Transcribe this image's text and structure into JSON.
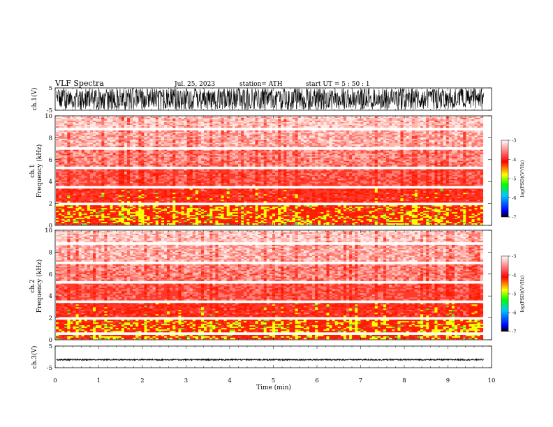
{
  "header": {
    "title": "VLF  Spectra",
    "date": "Jul.  25,  2023",
    "station": "station= ATH",
    "start": "start  UT  =    5  : 50 : 1"
  },
  "chart_data": [
    {
      "type": "line",
      "panel": "ch1-waveform",
      "ylabel": "ch.1(V)",
      "ylim": [
        -5,
        5
      ],
      "ytick_labels": [
        "5",
        "-5"
      ],
      "xlim": [
        0,
        10
      ],
      "amplitude_range": [
        -5,
        5
      ],
      "data_end_min": 9.82
    },
    {
      "type": "heatmap",
      "panel": "ch1-spectrogram",
      "ylabel_line1": "ch.1",
      "ylabel_line2": "Frequency  (kHz)",
      "ylim": [
        0,
        10
      ],
      "ytick_labels": [
        "0",
        "2",
        "4",
        "6",
        "8",
        "10"
      ],
      "xlim": [
        0,
        10
      ],
      "data_end_min": 9.82,
      "white_gaps_khz": [
        1.9,
        3.5,
        5.3,
        7.1,
        8.8
      ],
      "colorbar": {
        "label": "log(PSD)(V²/Hz)",
        "range": [
          -7,
          -3
        ],
        "tick_labels": [
          "-3",
          "-4",
          "-5",
          "-6",
          "-7"
        ],
        "colors": [
          "#000000",
          "#0000ff",
          "#00c8ff",
          "#00ff00",
          "#ffff00",
          "#ff0000",
          "#ffffff"
        ]
      }
    },
    {
      "type": "heatmap",
      "panel": "ch2-spectrogram",
      "ylabel_line1": "ch.2",
      "ylabel_line2": "Frequency  (kHz)",
      "ylim": [
        0,
        10
      ],
      "ytick_labels": [
        "0",
        "2",
        "4",
        "6",
        "8",
        "10"
      ],
      "xlim": [
        0,
        10
      ],
      "data_end_min": 9.82,
      "white_gaps_khz": [
        0.5,
        1.9,
        3.5,
        5.3,
        7.1,
        8.8
      ],
      "colorbar": {
        "label": "log(PSD)(V²/Hz)",
        "range": [
          -7,
          -3
        ],
        "tick_labels": [
          "-3",
          "-4",
          "-5",
          "-6",
          "-7"
        ],
        "colors": [
          "#000000",
          "#0000ff",
          "#00c8ff",
          "#00ff00",
          "#ffff00",
          "#ff0000",
          "#ffffff"
        ]
      }
    },
    {
      "type": "line",
      "panel": "ch3-waveform",
      "ylabel": "ch.3(V)",
      "ylim": [
        -5,
        5
      ],
      "ytick_labels": [
        "5",
        "-5"
      ],
      "xlim": [
        0,
        10
      ],
      "level_v": -1.3,
      "amplitude_range": [
        -1.6,
        -1.0
      ],
      "data_end_min": 9.82,
      "xlabel": "Time  (min)",
      "xtick_labels": [
        "0",
        "1",
        "2",
        "3",
        "4",
        "5",
        "6",
        "7",
        "8",
        "9",
        "10"
      ]
    }
  ]
}
